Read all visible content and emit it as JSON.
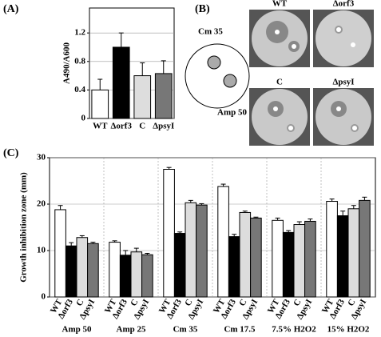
{
  "panel_labels": [
    "(A)",
    "(B)",
    "(C)"
  ],
  "diagram": {
    "plate_labels": [
      "Cm 35",
      "Amp 50"
    ],
    "photo_labels": [
      "WT",
      "Δorf3",
      "C",
      "ΔpsyI"
    ]
  },
  "chart_data": [
    {
      "type": "bar",
      "ylabel": "A490/A600",
      "categories": [
        "WT",
        "Δorf3",
        "C",
        "ΔpsyI"
      ],
      "values": [
        0.4,
        1.0,
        0.6,
        0.63
      ],
      "errors": [
        0.15,
        0.2,
        0.18,
        0.18
      ],
      "colors": [
        "#ffffff",
        "#000000",
        "#dddddd",
        "#777777"
      ],
      "ylim": [
        0,
        1.55
      ],
      "yticks": [
        0,
        0.4,
        0.8,
        1.2
      ],
      "grid": true
    },
    {
      "type": "grouped_bar",
      "ylabel": "Growth inhibition zone (mm)",
      "categories": [
        "Amp 50",
        "Amp 25",
        "Cm 35",
        "Cm 17.5",
        "7.5% H2O2",
        "15% H2O2"
      ],
      "series": [
        {
          "name": "WT",
          "color": "#ffffff",
          "values": [
            18.8,
            11.8,
            27.5,
            23.8,
            16.5,
            20.6
          ],
          "errors": [
            0.9,
            0.3,
            0.4,
            0.5,
            0.5,
            0.5
          ]
        },
        {
          "name": "Δorf3",
          "color": "#000000",
          "values": [
            11,
            9,
            13.7,
            13,
            13.9,
            17.5
          ],
          "errors": [
            0.7,
            1,
            0.3,
            0.5,
            0.4,
            1
          ]
        },
        {
          "name": "C",
          "color": "#dddddd",
          "values": [
            12.8,
            9.7,
            20.3,
            18.2,
            15.6,
            19
          ],
          "errors": [
            0.4,
            0.8,
            0.5,
            0.3,
            0.6,
            0.7
          ]
        },
        {
          "name": "ΔpsyI",
          "color": "#777777",
          "values": [
            11.5,
            9.1,
            19.8,
            17,
            16.3,
            20.8
          ],
          "errors": [
            0.3,
            0.3,
            0.3,
            0.2,
            0.5,
            0.7
          ]
        }
      ],
      "ylim": [
        0,
        30
      ],
      "yticks": [
        0,
        10,
        20,
        30
      ],
      "grid": true
    }
  ]
}
